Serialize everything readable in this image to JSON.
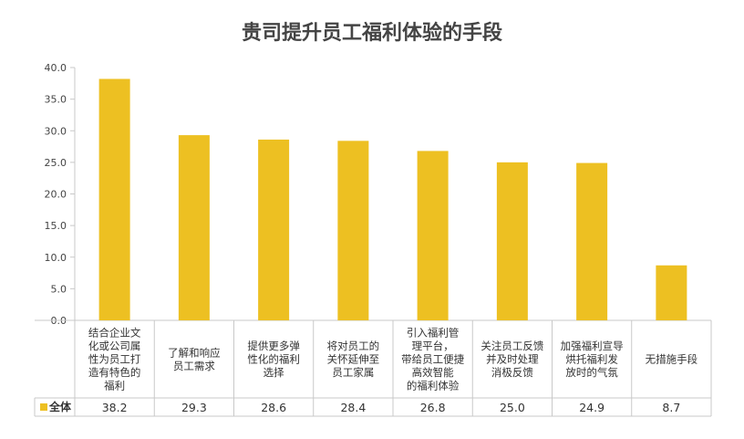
{
  "chart_data": {
    "type": "bar",
    "title": "贵司提升员工福利体验的手段",
    "categories": [
      [
        "结合企业文",
        "化或公司属",
        "性为员工打",
        "造有特色的",
        "福利"
      ],
      [
        "了解和响应",
        "员工需求"
      ],
      [
        "提供更多弹",
        "性化的福利",
        "选择"
      ],
      [
        "将对员工的",
        "关怀延伸至",
        "员工家属"
      ],
      [
        "引入福利管",
        "理平台，",
        "带给员工便捷",
        "高效智能",
        "的福利体验"
      ],
      [
        "关注员工反馈",
        "并及时处理",
        "消极反馈"
      ],
      [
        "加强福利宣导",
        "烘托福利发",
        "放时的气氛"
      ],
      [
        "无措施手段"
      ]
    ],
    "series": [
      {
        "name": "全体",
        "values": [
          38.2,
          29.3,
          28.6,
          28.4,
          26.8,
          25.0,
          24.9,
          8.7
        ]
      }
    ],
    "value_labels": [
      "38.2",
      "29.3",
      "28.6",
      "28.4",
      "26.8",
      "25.0",
      "24.9",
      "8.7"
    ],
    "yticks": [
      "0.0",
      "5.0",
      "10.0",
      "15.0",
      "20.0",
      "25.0",
      "30.0",
      "35.0",
      "40.0"
    ],
    "ylim": [
      0,
      40
    ],
    "grid": false,
    "legend": "data-table",
    "bar_color": "#EDC022"
  }
}
